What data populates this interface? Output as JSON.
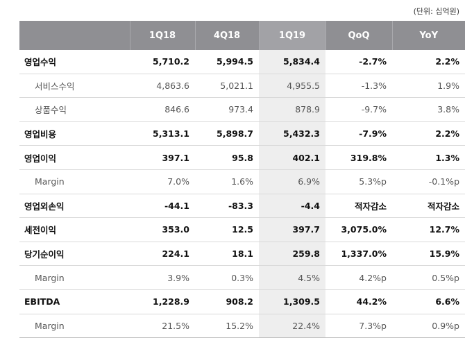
{
  "unit_note": "(단위: 십억원)",
  "columns": [
    "",
    "1Q18",
    "4Q18",
    "1Q19",
    "QoQ",
    "YoY"
  ],
  "rows": [
    {
      "label": "영업수익",
      "type": "major",
      "v": [
        "5,710.2",
        "5,994.5",
        "5,834.4",
        "-2.7%",
        "2.2%"
      ]
    },
    {
      "label": "서비스수익",
      "type": "sub",
      "v": [
        "4,863.6",
        "5,021.1",
        "4,955.5",
        "-1.3%",
        "1.9%"
      ]
    },
    {
      "label": "상품수익",
      "type": "sub",
      "v": [
        "846.6",
        "973.4",
        "878.9",
        "-9.7%",
        "3.8%"
      ]
    },
    {
      "label": "영업비용",
      "type": "major",
      "v": [
        "5,313.1",
        "5,898.7",
        "5,432.3",
        "-7.9%",
        "2.2%"
      ]
    },
    {
      "label": "영업이익",
      "type": "major",
      "v": [
        "397.1",
        "95.8",
        "402.1",
        "319.8%",
        "1.3%"
      ]
    },
    {
      "label": "Margin",
      "type": "sub",
      "v": [
        "7.0%",
        "1.6%",
        "6.9%",
        "5.3%p",
        "-0.1%p"
      ]
    },
    {
      "label": "영업외손익",
      "type": "major",
      "v": [
        "-44.1",
        "-83.3",
        "-4.4",
        "적자감소",
        "적자감소"
      ]
    },
    {
      "label": "세전이익",
      "type": "major",
      "v": [
        "353.0",
        "12.5",
        "397.7",
        "3,075.0%",
        "12.7%"
      ]
    },
    {
      "label": "당기순이익",
      "type": "major",
      "v": [
        "224.1",
        "18.1",
        "259.8",
        "1,337.0%",
        "15.9%"
      ]
    },
    {
      "label": "Margin",
      "type": "sub",
      "v": [
        "3.9%",
        "0.3%",
        "4.5%",
        "4.2%p",
        "0.5%p"
      ]
    },
    {
      "label": "EBITDA",
      "type": "major",
      "v": [
        "1,228.9",
        "908.2",
        "1,309.5",
        "44.2%",
        "6.6%"
      ]
    },
    {
      "label": "Margin",
      "type": "sub",
      "v": [
        "21.5%",
        "15.2%",
        "22.4%",
        "7.3%p",
        "0.9%p"
      ]
    }
  ],
  "colors": {
    "header_bg": "#8f8f93",
    "highlight_bg": "#eeeeee",
    "highlight_text": "#d0282e"
  }
}
